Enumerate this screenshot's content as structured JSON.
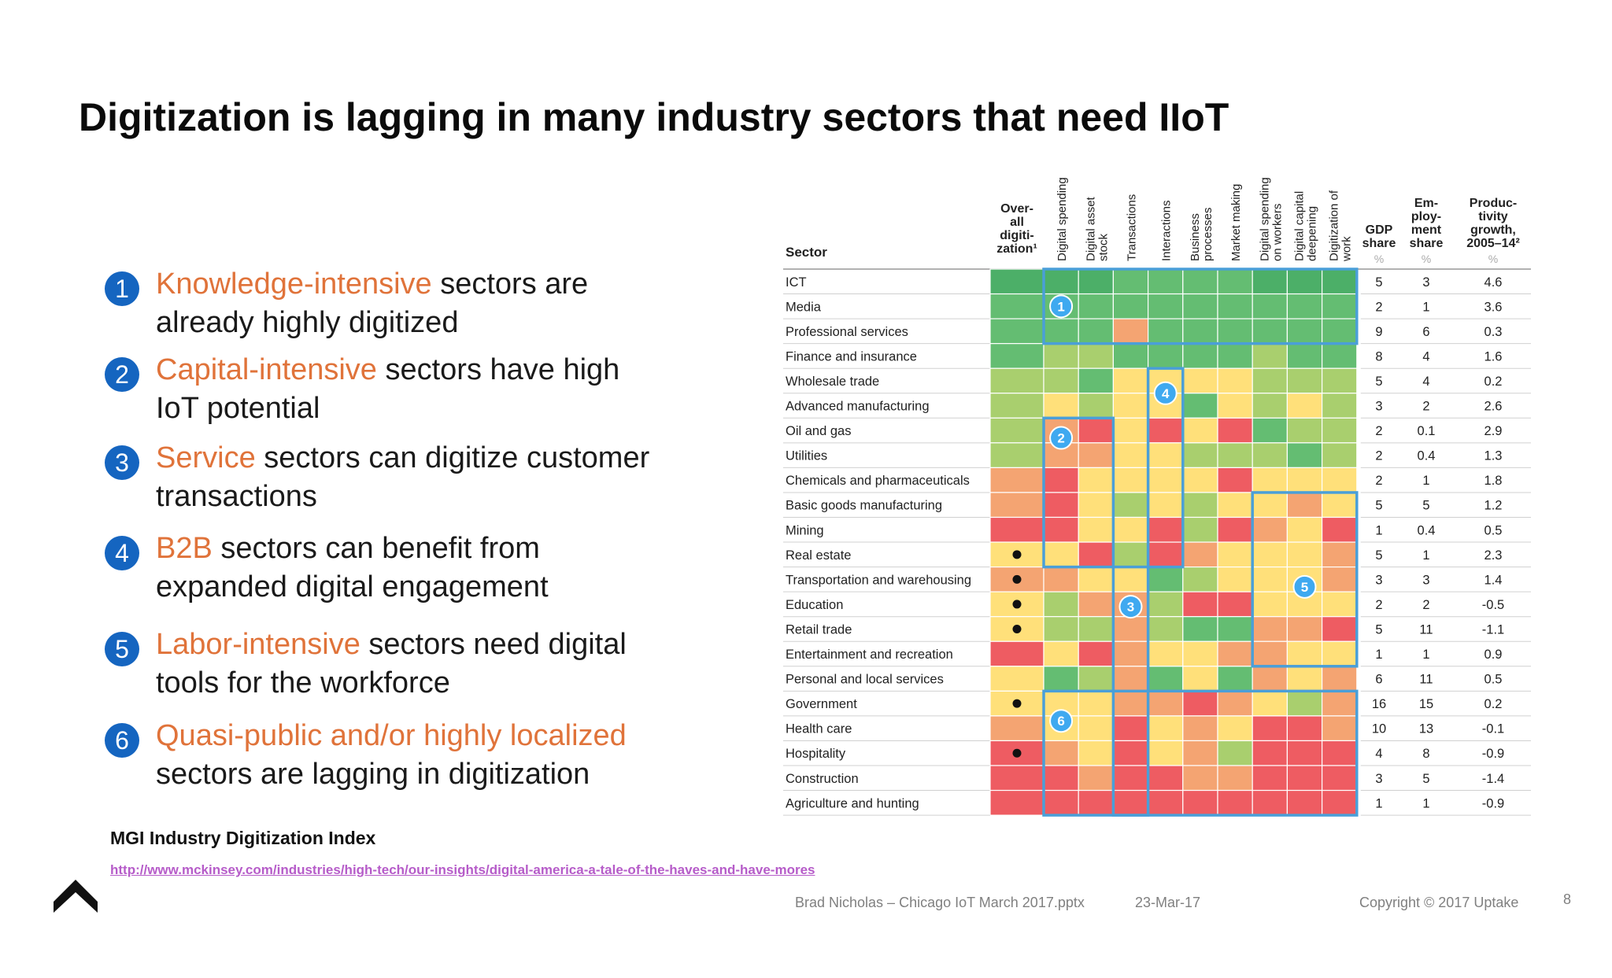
{
  "slide": {
    "title": "Digitization is lagging in many industry sectors that need IIoT",
    "bullets": [
      {
        "num": "1",
        "highlight": "Knowledge-intensive",
        "rest": " sectors are",
        "line2": "already highly digitized"
      },
      {
        "num": "2",
        "highlight": "Capital-intensive",
        "rest": " sectors have high",
        "line2": "IoT potential"
      },
      {
        "num": "3",
        "highlight": "Service",
        "rest": " sectors can digitize customer",
        "line2": "transactions"
      },
      {
        "num": "4",
        "highlight": "B2B",
        "rest": " sectors can benefit from",
        "line2": "expanded digital engagement"
      },
      {
        "num": "5",
        "highlight": "Labor-intensive",
        "rest": " sectors need digital",
        "line2": "tools for the workforce"
      },
      {
        "num": "6",
        "highlight": "Quasi-public and/or highly localized",
        "rest": "",
        "line2": "sectors are lagging in digitization"
      }
    ],
    "index_title": "MGI Industry Digitization Index",
    "link": "http://www.mckinsey.com/industries/high-tech/our-insights/digital-america-a-tale-of-the-haves-and-have-mores",
    "footer": {
      "file": "Brad Nicholas – Chicago IoT March 2017.pptx",
      "date": "23-Mar-17",
      "copyright": "Copyright © 2017 Uptake",
      "page": "8"
    },
    "colors": {
      "accent": "#e0733a",
      "bullet_circle": "#1565c0",
      "group_outline": "#4a9fd8"
    }
  },
  "heatmap": {
    "sector_header": "Sector",
    "overall_header": [
      "Over-",
      "all",
      "digiti-",
      "zation¹"
    ],
    "column_headers": [
      [
        "Digital spending"
      ],
      [
        "Digital asset",
        "stock"
      ],
      [
        "Transactions"
      ],
      [
        "Interactions"
      ],
      [
        "Business",
        "processes"
      ],
      [
        "Market making"
      ],
      [
        "Digital spending",
        "on workers"
      ],
      [
        "Digital capital",
        "deepening"
      ],
      [
        "Digitization of",
        "work"
      ]
    ],
    "stat_headers": [
      {
        "lines": [
          "GDP",
          "share"
        ],
        "unit": "%"
      },
      {
        "lines": [
          "Em-",
          "ploy-",
          "ment",
          "share"
        ],
        "unit": "%"
      },
      {
        "lines": [
          "Produc-",
          "tivity",
          "growth,",
          "2005–14²"
        ],
        "unit": "%"
      }
    ],
    "palette": {
      "1": "#4caf68",
      "2": "#64bd72",
      "3": "#a9cf6e",
      "4": "#ffe07a",
      "5": "#f4a472",
      "6": "#ee5c62"
    },
    "rows": [
      {
        "sector": "ICT",
        "dot": false,
        "cells": [
          1,
          1,
          1,
          2,
          2,
          2,
          2,
          1,
          1,
          1
        ],
        "gdp": "5",
        "emp": "3",
        "prod": "4.6"
      },
      {
        "sector": "Media",
        "dot": false,
        "cells": [
          2,
          2,
          2,
          2,
          2,
          2,
          2,
          2,
          2,
          2
        ],
        "gdp": "2",
        "emp": "1",
        "prod": "3.6"
      },
      {
        "sector": "Professional services",
        "dot": false,
        "cells": [
          2,
          2,
          2,
          5,
          2,
          2,
          2,
          2,
          2,
          2
        ],
        "gdp": "9",
        "emp": "6",
        "prod": "0.3"
      },
      {
        "sector": "Finance and insurance",
        "dot": false,
        "cells": [
          2,
          3,
          3,
          2,
          2,
          2,
          2,
          3,
          2,
          2
        ],
        "gdp": "8",
        "emp": "4",
        "prod": "1.6"
      },
      {
        "sector": "Wholesale trade",
        "dot": false,
        "cells": [
          3,
          3,
          2,
          4,
          4,
          4,
          4,
          3,
          3,
          3
        ],
        "gdp": "5",
        "emp": "4",
        "prod": "0.2"
      },
      {
        "sector": "Advanced manufacturing",
        "dot": false,
        "cells": [
          3,
          4,
          3,
          4,
          4,
          2,
          4,
          3,
          4,
          3
        ],
        "gdp": "3",
        "emp": "2",
        "prod": "2.6"
      },
      {
        "sector": "Oil and gas",
        "dot": false,
        "cells": [
          3,
          5,
          6,
          4,
          6,
          4,
          6,
          2,
          3,
          3
        ],
        "gdp": "2",
        "emp": "0.1",
        "prod": "2.9"
      },
      {
        "sector": "Utilities",
        "dot": false,
        "cells": [
          3,
          5,
          5,
          4,
          4,
          3,
          3,
          3,
          2,
          3
        ],
        "gdp": "2",
        "emp": "0.4",
        "prod": "1.3"
      },
      {
        "sector": "Chemicals and pharmaceuticals",
        "dot": false,
        "cells": [
          5,
          6,
          4,
          4,
          4,
          4,
          6,
          4,
          4,
          4
        ],
        "gdp": "2",
        "emp": "1",
        "prod": "1.8"
      },
      {
        "sector": "Basic goods manufacturing",
        "dot": false,
        "cells": [
          5,
          6,
          4,
          3,
          4,
          3,
          4,
          4,
          5,
          4
        ],
        "gdp": "5",
        "emp": "5",
        "prod": "1.2"
      },
      {
        "sector": "Mining",
        "dot": false,
        "cells": [
          6,
          6,
          4,
          4,
          6,
          3,
          6,
          5,
          4,
          6
        ],
        "gdp": "1",
        "emp": "0.4",
        "prod": "0.5"
      },
      {
        "sector": "Real estate",
        "dot": true,
        "cells": [
          4,
          4,
          6,
          3,
          6,
          5,
          4,
          4,
          4,
          5
        ],
        "gdp": "5",
        "emp": "1",
        "prod": "2.3"
      },
      {
        "sector": "Transportation and warehousing",
        "dot": true,
        "cells": [
          5,
          5,
          4,
          4,
          2,
          3,
          4,
          4,
          4,
          5
        ],
        "gdp": "3",
        "emp": "3",
        "prod": "1.4"
      },
      {
        "sector": "Education",
        "dot": true,
        "cells": [
          4,
          3,
          5,
          5,
          3,
          6,
          6,
          4,
          4,
          4
        ],
        "gdp": "2",
        "emp": "2",
        "prod": "-0.5"
      },
      {
        "sector": "Retail trade",
        "dot": true,
        "cells": [
          4,
          3,
          3,
          5,
          3,
          2,
          2,
          5,
          5,
          6
        ],
        "gdp": "5",
        "emp": "11",
        "prod": "-1.1"
      },
      {
        "sector": "Entertainment and recreation",
        "dot": false,
        "cells": [
          6,
          4,
          6,
          5,
          4,
          4,
          5,
          5,
          4,
          4
        ],
        "gdp": "1",
        "emp": "1",
        "prod": "0.9"
      },
      {
        "sector": "Personal and local services",
        "dot": false,
        "cells": [
          4,
          2,
          3,
          5,
          2,
          4,
          2,
          5,
          4,
          5
        ],
        "gdp": "6",
        "emp": "11",
        "prod": "0.5"
      },
      {
        "sector": "Government",
        "dot": true,
        "cells": [
          4,
          4,
          4,
          5,
          5,
          6,
          5,
          4,
          3,
          5
        ],
        "gdp": "16",
        "emp": "15",
        "prod": "0.2"
      },
      {
        "sector": "Health care",
        "dot": false,
        "cells": [
          5,
          4,
          4,
          6,
          4,
          5,
          4,
          6,
          6,
          5
        ],
        "gdp": "10",
        "emp": "13",
        "prod": "-0.1"
      },
      {
        "sector": "Hospitality",
        "dot": true,
        "cells": [
          6,
          5,
          4,
          6,
          4,
          5,
          3,
          6,
          6,
          6
        ],
        "gdp": "4",
        "emp": "8",
        "prod": "-0.9"
      },
      {
        "sector": "Construction",
        "dot": false,
        "cells": [
          6,
          6,
          5,
          6,
          6,
          5,
          5,
          6,
          6,
          6
        ],
        "gdp": "3",
        "emp": "5",
        "prod": "-1.4"
      },
      {
        "sector": "Agriculture and hunting",
        "dot": false,
        "cells": [
          6,
          6,
          6,
          6,
          6,
          6,
          6,
          6,
          6,
          6
        ],
        "gdp": "1",
        "emp": "1",
        "prod": "-0.9"
      }
    ],
    "groups": [
      {
        "label": "1",
        "col_from": 1,
        "col_to": 9,
        "row_from": 0,
        "row_to": 3,
        "badge_col": 1.5,
        "badge_row": 1.5
      },
      {
        "label": "2",
        "col_from": 1,
        "col_to": 2,
        "row_from": 6,
        "row_to": 12,
        "badge_col": 1.5,
        "badge_row": 6.8
      },
      {
        "label": "3",
        "col_from": 3,
        "col_to": 3,
        "row_from": 12,
        "row_to": 22,
        "badge_col": 3.5,
        "badge_row": 13.6
      },
      {
        "label": "4",
        "col_from": 4,
        "col_to": 4,
        "row_from": 4,
        "row_to": 12,
        "badge_col": 4.5,
        "badge_row": 5.0
      },
      {
        "label": "5",
        "col_from": 7,
        "col_to": 9,
        "row_from": 9,
        "row_to": 16,
        "badge_col": 8.5,
        "badge_row": 12.8
      },
      {
        "label": "6",
        "col_from": 1,
        "col_to": 9,
        "row_from": 17,
        "row_to": 22,
        "badge_col": 1.5,
        "badge_row": 18.2
      }
    ]
  }
}
